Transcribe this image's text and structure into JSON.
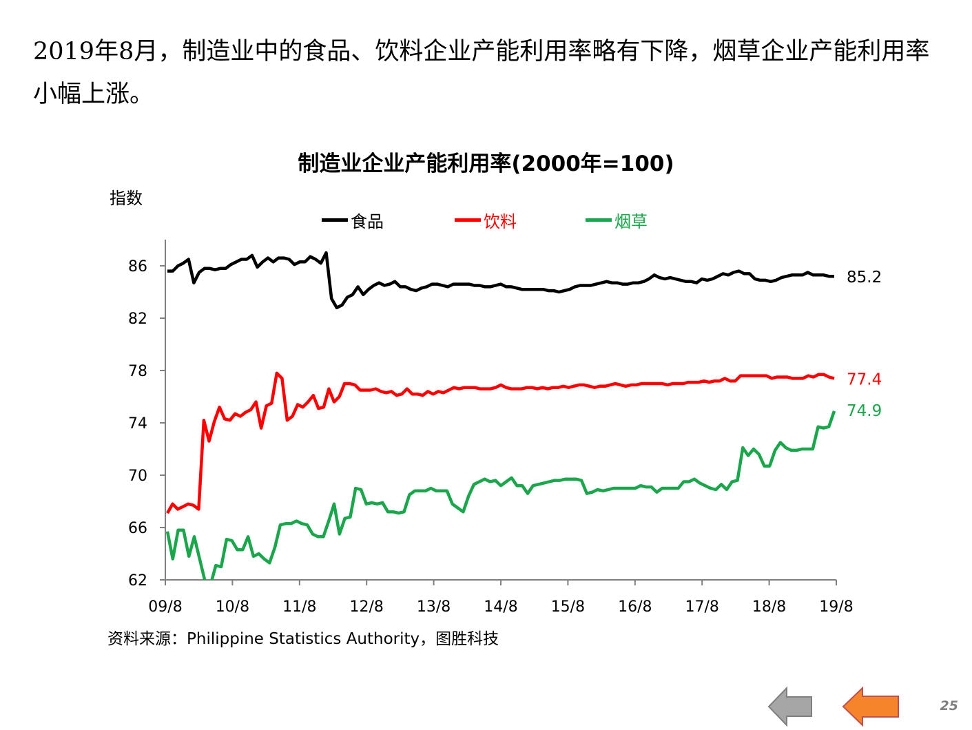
{
  "headline": "2019年8月，制造业中的食品、饮料企业产能利用率略有下降，烟草企业产能利用率小幅上涨。",
  "source": "资料来源：Philippine Statistics Authority，图胜科技",
  "page_number": "25",
  "nav": {
    "prev_icon": "arrow-left-gray-icon",
    "next_icon": "arrow-left-orange-icon"
  },
  "colors": {
    "food": "#000000",
    "beverage": "#ff0000",
    "tobacco": "#1aa64a",
    "prev": "#a6a6a6",
    "next": "#f5842a"
  },
  "chart_data": {
    "type": "line",
    "title": "制造业企业产能利用率(2000年=100)",
    "ylabel": "指数",
    "xlabel": "",
    "ylim": [
      62,
      88
    ],
    "yticks": [
      62,
      66,
      70,
      74,
      78,
      82,
      86
    ],
    "x_tick_labels": [
      "09/8",
      "10/8",
      "11/8",
      "12/8",
      "13/8",
      "14/8",
      "15/8",
      "16/8",
      "17/8",
      "18/8",
      "19/8"
    ],
    "x_start": "2009-08",
    "x_end": "2019-08",
    "legend_position": "top",
    "grid": false,
    "series": [
      {
        "name": "食品",
        "color": "#000000",
        "end_label": "85.2",
        "values": [
          85.6,
          85.6,
          86.0,
          86.2,
          86.5,
          84.7,
          85.5,
          85.8,
          85.8,
          85.7,
          85.8,
          85.8,
          86.1,
          86.3,
          86.5,
          86.5,
          86.8,
          85.9,
          86.3,
          86.6,
          86.3,
          86.6,
          86.6,
          86.5,
          86.1,
          86.3,
          86.3,
          86.7,
          86.5,
          86.2,
          87.0,
          83.5,
          82.8,
          83.0,
          83.6,
          83.8,
          84.4,
          83.8,
          84.2,
          84.5,
          84.7,
          84.5,
          84.6,
          84.8,
          84.4,
          84.4,
          84.2,
          84.1,
          84.3,
          84.4,
          84.6,
          84.6,
          84.5,
          84.4,
          84.6,
          84.6,
          84.6,
          84.6,
          84.5,
          84.5,
          84.4,
          84.4,
          84.5,
          84.6,
          84.4,
          84.4,
          84.3,
          84.2,
          84.2,
          84.2,
          84.2,
          84.2,
          84.1,
          84.1,
          84.0,
          84.1,
          84.2,
          84.4,
          84.5,
          84.5,
          84.5,
          84.6,
          84.7,
          84.8,
          84.7,
          84.7,
          84.6,
          84.6,
          84.7,
          84.7,
          84.8,
          85.0,
          85.3,
          85.1,
          85.0,
          85.1,
          85.0,
          84.9,
          84.8,
          84.8,
          84.7,
          85.0,
          84.9,
          85.0,
          85.2,
          85.4,
          85.3,
          85.5,
          85.6,
          85.4,
          85.4,
          85.0,
          84.9,
          84.9,
          84.8,
          84.9,
          85.1,
          85.2,
          85.3,
          85.3,
          85.3,
          85.5,
          85.3,
          85.3,
          85.3,
          85.2,
          85.2
        ]
      },
      {
        "name": "饮料",
        "color": "#ff0000",
        "end_label": "77.4",
        "values": [
          67.1,
          67.8,
          67.4,
          67.6,
          67.8,
          67.7,
          67.4,
          74.2,
          72.6,
          74.1,
          75.2,
          74.3,
          74.2,
          74.7,
          74.5,
          74.8,
          75.0,
          75.6,
          73.6,
          75.3,
          75.5,
          77.8,
          77.4,
          74.2,
          74.5,
          75.4,
          75.2,
          75.6,
          76.1,
          75.1,
          75.2,
          76.6,
          75.6,
          76.0,
          77.0,
          77.0,
          76.9,
          76.5,
          76.5,
          76.5,
          76.6,
          76.4,
          76.3,
          76.4,
          76.1,
          76.2,
          76.6,
          76.2,
          76.2,
          76.1,
          76.4,
          76.2,
          76.4,
          76.3,
          76.5,
          76.7,
          76.6,
          76.7,
          76.7,
          76.7,
          76.6,
          76.6,
          76.6,
          76.7,
          76.9,
          76.7,
          76.6,
          76.6,
          76.6,
          76.7,
          76.7,
          76.6,
          76.7,
          76.6,
          76.7,
          76.7,
          76.8,
          76.7,
          76.8,
          76.9,
          76.9,
          76.8,
          76.7,
          76.8,
          76.8,
          76.9,
          77.0,
          76.9,
          76.8,
          76.9,
          76.9,
          77.0,
          77.0,
          77.0,
          77.0,
          77.0,
          76.9,
          77.0,
          77.0,
          77.0,
          77.1,
          77.1,
          77.1,
          77.2,
          77.1,
          77.2,
          77.2,
          77.4,
          77.2,
          77.2,
          77.6,
          77.6,
          77.6,
          77.6,
          77.6,
          77.6,
          77.4,
          77.5,
          77.5,
          77.5,
          77.4,
          77.4,
          77.4,
          77.6,
          77.5,
          77.7,
          77.7,
          77.5,
          77.4
        ]
      },
      {
        "name": "烟草",
        "color": "#1aa64a",
        "end_label": "74.9",
        "values": [
          65.7,
          63.6,
          65.8,
          65.8,
          63.8,
          65.3,
          63.6,
          61.9,
          61.6,
          63.1,
          63.0,
          65.1,
          65.0,
          64.3,
          64.3,
          65.3,
          63.8,
          64.0,
          63.6,
          63.3,
          64.5,
          66.2,
          66.3,
          66.3,
          66.5,
          66.3,
          66.2,
          65.5,
          65.3,
          65.3,
          66.5,
          67.8,
          65.5,
          66.7,
          66.8,
          69.0,
          68.9,
          67.8,
          67.9,
          67.8,
          67.9,
          67.2,
          67.2,
          67.1,
          67.2,
          68.5,
          68.8,
          68.8,
          68.8,
          69.0,
          68.8,
          68.8,
          68.8,
          67.8,
          67.5,
          67.2,
          68.4,
          69.3,
          69.5,
          69.7,
          69.5,
          69.6,
          69.2,
          69.5,
          69.8,
          69.2,
          69.2,
          68.6,
          69.2,
          69.3,
          69.4,
          69.5,
          69.6,
          69.6,
          69.7,
          69.7,
          69.7,
          69.6,
          68.6,
          68.7,
          68.9,
          68.8,
          68.9,
          69.0,
          69.0,
          69.0,
          69.0,
          69.0,
          69.2,
          69.1,
          69.1,
          68.7,
          69.0,
          69.0,
          69.0,
          69.0,
          69.5,
          69.5,
          69.7,
          69.4,
          69.2,
          69.0,
          68.9,
          69.3,
          68.9,
          69.5,
          69.6,
          72.1,
          71.5,
          72.0,
          71.6,
          70.7,
          70.7,
          71.9,
          72.5,
          72.1,
          71.9,
          71.9,
          72.0,
          72.0,
          72.0,
          73.7,
          73.6,
          73.7,
          74.9
        ]
      }
    ]
  }
}
